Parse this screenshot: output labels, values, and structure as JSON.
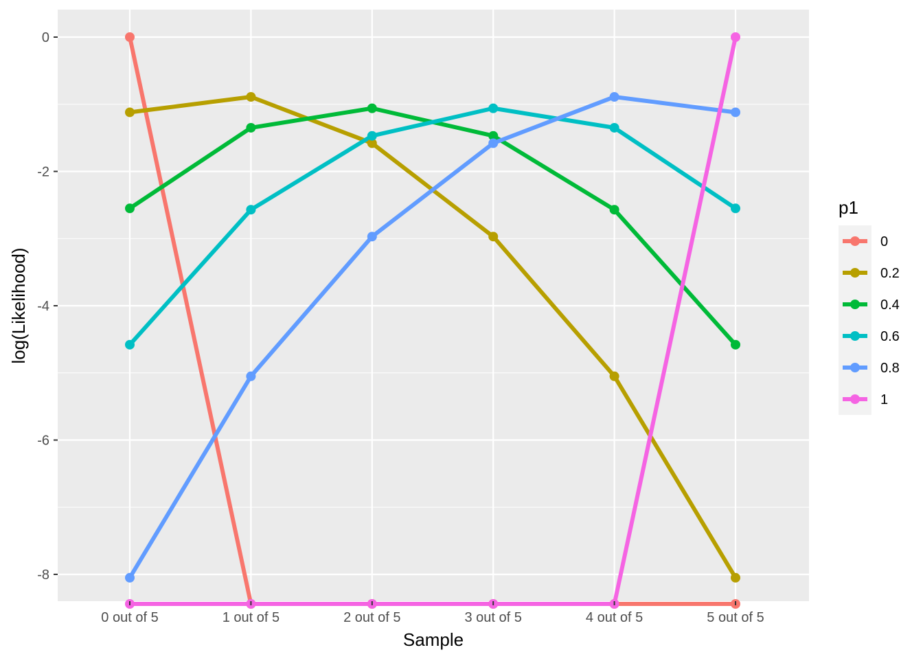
{
  "chart_data": {
    "type": "line",
    "categories": [
      "0 out of 5",
      "1 out of 5",
      "2 out of 5",
      "3 out of 5",
      "4 out of 5",
      "5 out of 5"
    ],
    "xlabel": "Sample",
    "ylabel": "log(Likelihood)",
    "yticks": [
      0,
      -2,
      -4,
      -6,
      -8
    ],
    "ytick_labels": [
      "0",
      "-2",
      "-4",
      "-6",
      "-8"
    ],
    "ylim": [
      -8.44,
      0.44
    ],
    "grid": true,
    "legend": {
      "title": "p1",
      "placement": "right"
    },
    "series": [
      {
        "name": "0",
        "color": "#F8766D",
        "values": [
          0.0,
          -8.44,
          -8.44,
          -8.44,
          -8.44,
          -8.44
        ]
      },
      {
        "name": "0.2",
        "color": "#B79F00",
        "values": [
          -1.12,
          -0.89,
          -1.58,
          -2.97,
          -5.05,
          -8.05
        ]
      },
      {
        "name": "0.4",
        "color": "#00BA38",
        "values": [
          -2.55,
          -1.35,
          -1.06,
          -1.47,
          -2.57,
          -4.58
        ]
      },
      {
        "name": "0.6",
        "color": "#00BFC4",
        "values": [
          -4.58,
          -2.57,
          -1.47,
          -1.06,
          -1.35,
          -2.55
        ]
      },
      {
        "name": "0.8",
        "color": "#619CFF",
        "values": [
          -8.05,
          -5.05,
          -2.97,
          -1.58,
          -0.89,
          -1.12
        ]
      },
      {
        "name": "1",
        "color": "#F564E3",
        "values": [
          -8.44,
          -8.44,
          -8.44,
          -8.44,
          -8.44,
          0.0
        ]
      }
    ]
  }
}
